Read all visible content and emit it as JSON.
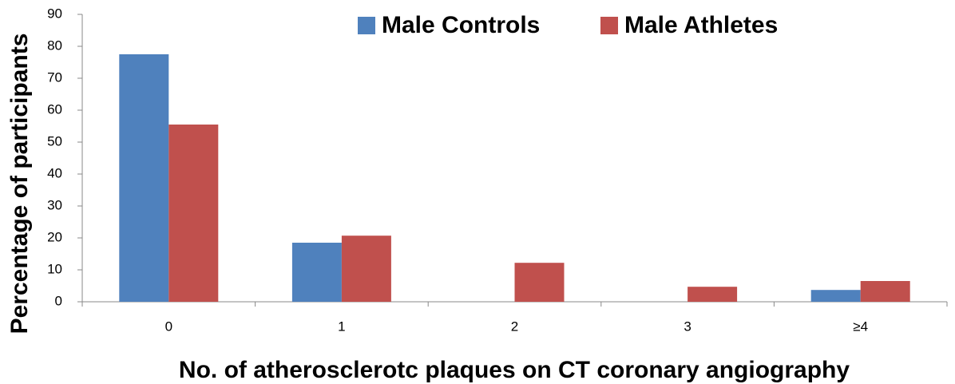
{
  "chart_data": {
    "type": "bar",
    "xlabel": "No. of atherosclerotc plaques on CT coronary angiography",
    "ylabel": "Percentage of participants",
    "categories": [
      "0",
      "1",
      "2",
      "3",
      "≥4"
    ],
    "series": [
      {
        "name": "Male Controls",
        "color": "#4f81bd",
        "values": [
          77.5,
          18.5,
          0,
          0,
          3.7
        ]
      },
      {
        "name": "Male Athletes",
        "color": "#c0504d",
        "values": [
          55.5,
          20.7,
          12.2,
          4.7,
          6.5
        ]
      }
    ],
    "ylim": [
      0,
      90
    ],
    "yticks": [
      0,
      10,
      20,
      30,
      40,
      50,
      60,
      70,
      80,
      90
    ],
    "grid": false,
    "legend": "top"
  }
}
